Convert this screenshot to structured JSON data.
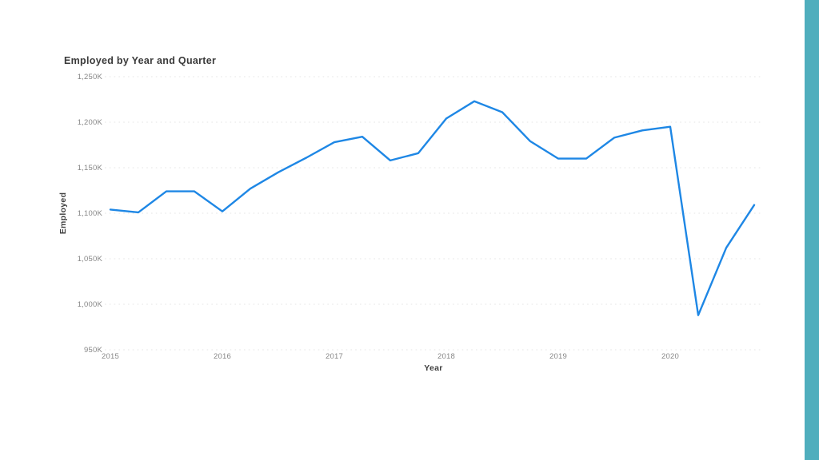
{
  "slide": {
    "accent_color": "#4FAEBD",
    "background_color": "#FFFFFF"
  },
  "chart": {
    "title": "Employed by Year and Quarter",
    "y_axis_title": "Employed",
    "x_axis_title": "Year",
    "y_tick_labels": [
      "1,250K",
      "1,200K",
      "1,150K",
      "1,100K",
      "1,050K",
      "1,000K",
      "950K"
    ],
    "x_tick_labels": [
      "2015",
      "2016",
      "2017",
      "2018",
      "2019",
      "2020"
    ],
    "line_color": "#1E87E5",
    "gridline_color": "#E4E4E4",
    "title_color": "#3A3A3A",
    "tick_label_color": "#878787"
  },
  "chart_data": {
    "type": "line",
    "title": "Employed by Year and Quarter",
    "xlabel": "Year",
    "ylabel": "Employed",
    "unit": "K",
    "x": [
      "2015 Q1",
      "2015 Q2",
      "2015 Q3",
      "2015 Q4",
      "2016 Q1",
      "2016 Q2",
      "2016 Q3",
      "2016 Q4",
      "2017 Q1",
      "2017 Q2",
      "2017 Q3",
      "2017 Q4",
      "2018 Q1",
      "2018 Q2",
      "2018 Q3",
      "2018 Q4",
      "2019 Q1",
      "2019 Q2",
      "2019 Q3",
      "2019 Q4",
      "2020 Q1",
      "2020 Q2",
      "2020 Q3",
      "2020 Q4"
    ],
    "values": [
      1104,
      1101,
      1124,
      1124,
      1102,
      1127,
      1145,
      1161,
      1178,
      1184,
      1158,
      1166,
      1204,
      1223,
      1211,
      1179,
      1160,
      1160,
      1183,
      1191,
      1195,
      988,
      1062,
      1109
    ],
    "ylim": [
      950,
      1250
    ],
    "y_ticks": [
      1250,
      1200,
      1150,
      1100,
      1050,
      1000,
      950
    ],
    "grid": "horizontal dotted",
    "legend": "none"
  }
}
